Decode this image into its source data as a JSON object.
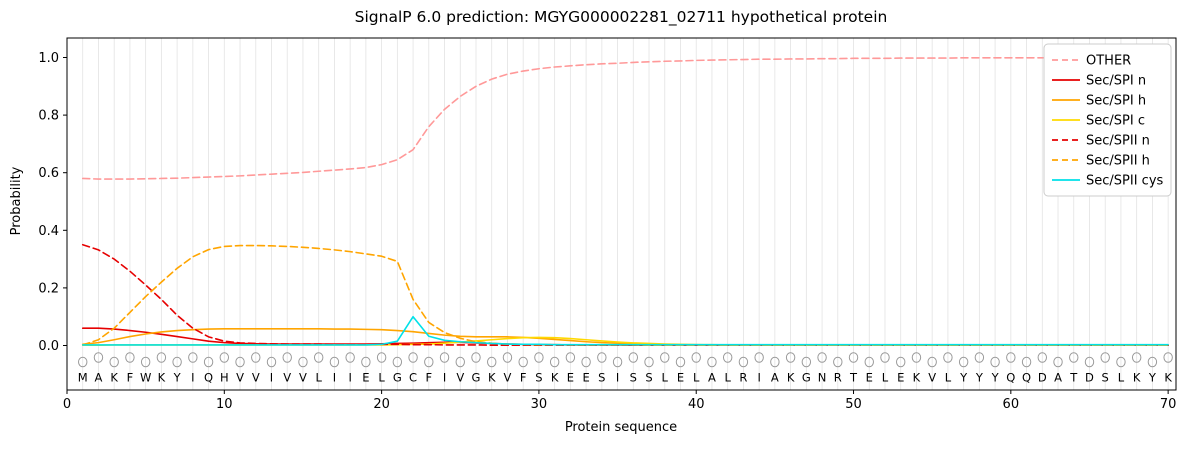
{
  "figure": {
    "title": "SignalP 6.0 prediction: MGYG000002281_02711 hypothetical protein",
    "xlabel": "Protein sequence",
    "ylabel": "Probability"
  },
  "chart_data": {
    "type": "line",
    "title": "SignalP 6.0 prediction: MGYG000002281_02711 hypothetical protein",
    "xlabel": "Protein sequence",
    "ylabel": "Probability",
    "xlim": [
      0,
      70.5
    ],
    "ylim": [
      0,
      1
    ],
    "x_ticks": [
      0,
      10,
      20,
      30,
      40,
      50,
      60,
      70
    ],
    "y_ticks": [
      "0.0",
      "0.2",
      "0.4",
      "0.6",
      "0.8",
      "1.0"
    ],
    "grid": {
      "vertical_per_residue": true,
      "horizontal": false,
      "color": "#e3e3e3"
    },
    "legend": {
      "position": "upper right"
    },
    "sequence": "MAKFWKYIQHVVIVVLIIELGCFIVGKVFSKEESISSLELALRIAKGNRTELEKVLYYYQQDATDSLKYK",
    "marker_row": "circle-outline",
    "colors": {
      "axis": "#000000",
      "grid": "#e3e3e3",
      "sequence_text": "#000000",
      "marker_stroke": "#999999"
    },
    "x": [
      1,
      2,
      3,
      4,
      5,
      6,
      7,
      8,
      9,
      10,
      11,
      12,
      13,
      14,
      15,
      16,
      17,
      18,
      19,
      20,
      21,
      22,
      23,
      24,
      25,
      26,
      27,
      28,
      29,
      30,
      31,
      32,
      33,
      34,
      35,
      36,
      37,
      38,
      39,
      40,
      41,
      42,
      43,
      44,
      45,
      46,
      47,
      48,
      49,
      50,
      51,
      52,
      53,
      54,
      55,
      56,
      57,
      58,
      59,
      60,
      61,
      62,
      63,
      64,
      65,
      66,
      67,
      68,
      69,
      70
    ],
    "series": [
      {
        "name": "OTHER",
        "color": "#ff9999",
        "style": "dashed",
        "values": [
          0.58,
          0.578,
          0.578,
          0.578,
          0.579,
          0.58,
          0.581,
          0.583,
          0.585,
          0.587,
          0.589,
          0.592,
          0.595,
          0.598,
          0.601,
          0.605,
          0.609,
          0.613,
          0.618,
          0.628,
          0.645,
          0.68,
          0.76,
          0.82,
          0.865,
          0.9,
          0.925,
          0.942,
          0.953,
          0.961,
          0.967,
          0.971,
          0.975,
          0.978,
          0.98,
          0.983,
          0.985,
          0.987,
          0.988,
          0.99,
          0.991,
          0.992,
          0.993,
          0.994,
          0.994,
          0.995,
          0.995,
          0.996,
          0.996,
          0.997,
          0.997,
          0.997,
          0.998,
          0.998,
          0.998,
          0.998,
          0.999,
          0.999,
          0.999,
          0.999,
          0.999,
          0.999,
          0.999,
          1.0,
          1.0,
          1.0,
          1.0,
          1.0,
          1.0,
          1.0
        ]
      },
      {
        "name": "Sec/SPI n",
        "color": "#e60000",
        "style": "solid",
        "values": [
          0.06,
          0.06,
          0.057,
          0.052,
          0.046,
          0.039,
          0.031,
          0.023,
          0.015,
          0.01,
          0.007,
          0.006,
          0.005,
          0.005,
          0.005,
          0.005,
          0.005,
          0.005,
          0.005,
          0.006,
          0.007,
          0.008,
          0.01,
          0.011,
          0.011,
          0.009,
          0.007,
          0.005,
          0.004,
          0.003,
          0.003,
          0.002,
          0.002,
          0.002,
          0.002,
          0.001,
          0.001,
          0.001,
          0.001,
          0.001,
          0.001,
          0.001,
          0.001,
          0.001,
          0.001,
          0.001,
          0.001,
          0.001,
          0.001,
          0.001,
          0.001,
          0.001,
          0.001,
          0.001,
          0.001,
          0.001,
          0.001,
          0.001,
          0.001,
          0.001,
          0.001,
          0.001,
          0.001,
          0.001,
          0.001,
          0.001,
          0.001,
          0.001,
          0.001,
          0.001
        ]
      },
      {
        "name": "Sec/SPI h",
        "color": "#ffa500",
        "style": "solid",
        "values": [
          0.004,
          0.01,
          0.02,
          0.031,
          0.04,
          0.047,
          0.052,
          0.055,
          0.057,
          0.058,
          0.058,
          0.058,
          0.058,
          0.058,
          0.058,
          0.058,
          0.057,
          0.057,
          0.056,
          0.055,
          0.052,
          0.048,
          0.042,
          0.036,
          0.032,
          0.03,
          0.03,
          0.03,
          0.028,
          0.025,
          0.021,
          0.017,
          0.013,
          0.01,
          0.008,
          0.006,
          0.005,
          0.004,
          0.003,
          0.003,
          0.002,
          0.002,
          0.002,
          0.002,
          0.001,
          0.001,
          0.001,
          0.001,
          0.001,
          0.001,
          0.001,
          0.001,
          0.001,
          0.001,
          0.001,
          0.001,
          0.001,
          0.001,
          0.001,
          0.001,
          0.001,
          0.001,
          0.001,
          0.001,
          0.001,
          0.001,
          0.001,
          0.001,
          0.001,
          0.001
        ]
      },
      {
        "name": "Sec/SPI c",
        "color": "#ffd900",
        "style": "solid",
        "values": [
          0.001,
          0.001,
          0.002,
          0.002,
          0.002,
          0.002,
          0.002,
          0.002,
          0.002,
          0.002,
          0.002,
          0.002,
          0.002,
          0.002,
          0.002,
          0.002,
          0.002,
          0.002,
          0.002,
          0.002,
          0.003,
          0.004,
          0.005,
          0.008,
          0.012,
          0.016,
          0.02,
          0.024,
          0.027,
          0.028,
          0.027,
          0.024,
          0.02,
          0.016,
          0.012,
          0.009,
          0.007,
          0.005,
          0.004,
          0.003,
          0.003,
          0.002,
          0.002,
          0.002,
          0.002,
          0.001,
          0.001,
          0.001,
          0.001,
          0.001,
          0.001,
          0.001,
          0.001,
          0.001,
          0.001,
          0.001,
          0.001,
          0.001,
          0.001,
          0.001,
          0.001,
          0.001,
          0.001,
          0.001,
          0.001,
          0.001,
          0.001,
          0.001,
          0.001,
          0.001
        ]
      },
      {
        "name": "Sec/SPII n",
        "color": "#e60000",
        "style": "dashed",
        "values": [
          0.35,
          0.332,
          0.3,
          0.258,
          0.21,
          0.16,
          0.105,
          0.06,
          0.03,
          0.015,
          0.009,
          0.007,
          0.006,
          0.005,
          0.005,
          0.005,
          0.004,
          0.004,
          0.004,
          0.004,
          0.004,
          0.003,
          0.003,
          0.002,
          0.002,
          0.002,
          0.001,
          0.001,
          0.001,
          0.001,
          0.001,
          0.001,
          0.001,
          0.001,
          0.001,
          0.001,
          0.001,
          0.001,
          0.001,
          0.001,
          0.001,
          0.001,
          0.001,
          0.001,
          0.001,
          0.001,
          0.001,
          0.001,
          0.001,
          0.001,
          0.001,
          0.001,
          0.001,
          0.001,
          0.001,
          0.001,
          0.001,
          0.001,
          0.001,
          0.001,
          0.001,
          0.001,
          0.001,
          0.001,
          0.001,
          0.001,
          0.001,
          0.001,
          0.001,
          0.001
        ]
      },
      {
        "name": "Sec/SPII h",
        "color": "#ffa500",
        "style": "dashed",
        "values": [
          0.002,
          0.02,
          0.06,
          0.115,
          0.17,
          0.22,
          0.268,
          0.308,
          0.333,
          0.344,
          0.347,
          0.347,
          0.346,
          0.344,
          0.341,
          0.337,
          0.332,
          0.326,
          0.318,
          0.31,
          0.292,
          0.16,
          0.08,
          0.045,
          0.025,
          0.013,
          0.008,
          0.005,
          0.004,
          0.003,
          0.003,
          0.002,
          0.002,
          0.002,
          0.002,
          0.002,
          0.001,
          0.001,
          0.001,
          0.001,
          0.001,
          0.001,
          0.001,
          0.001,
          0.001,
          0.001,
          0.001,
          0.001,
          0.001,
          0.001,
          0.001,
          0.001,
          0.001,
          0.001,
          0.001,
          0.001,
          0.001,
          0.001,
          0.001,
          0.001,
          0.001,
          0.001,
          0.001,
          0.001,
          0.001,
          0.001,
          0.001,
          0.001,
          0.001,
          0.001
        ]
      },
      {
        "name": "Sec/SPII cys",
        "color": "#00e1e8",
        "style": "solid",
        "values": [
          0.002,
          0.002,
          0.002,
          0.002,
          0.002,
          0.002,
          0.002,
          0.002,
          0.002,
          0.002,
          0.002,
          0.002,
          0.002,
          0.002,
          0.002,
          0.002,
          0.002,
          0.002,
          0.002,
          0.004,
          0.015,
          0.1,
          0.032,
          0.018,
          0.013,
          0.01,
          0.007,
          0.005,
          0.004,
          0.004,
          0.003,
          0.003,
          0.003,
          0.003,
          0.003,
          0.003,
          0.003,
          0.003,
          0.003,
          0.003,
          0.003,
          0.003,
          0.003,
          0.003,
          0.003,
          0.003,
          0.003,
          0.003,
          0.003,
          0.003,
          0.003,
          0.003,
          0.003,
          0.003,
          0.003,
          0.003,
          0.003,
          0.003,
          0.003,
          0.003,
          0.003,
          0.003,
          0.003,
          0.003,
          0.003,
          0.003,
          0.003,
          0.003,
          0.003,
          0.003
        ]
      }
    ]
  }
}
